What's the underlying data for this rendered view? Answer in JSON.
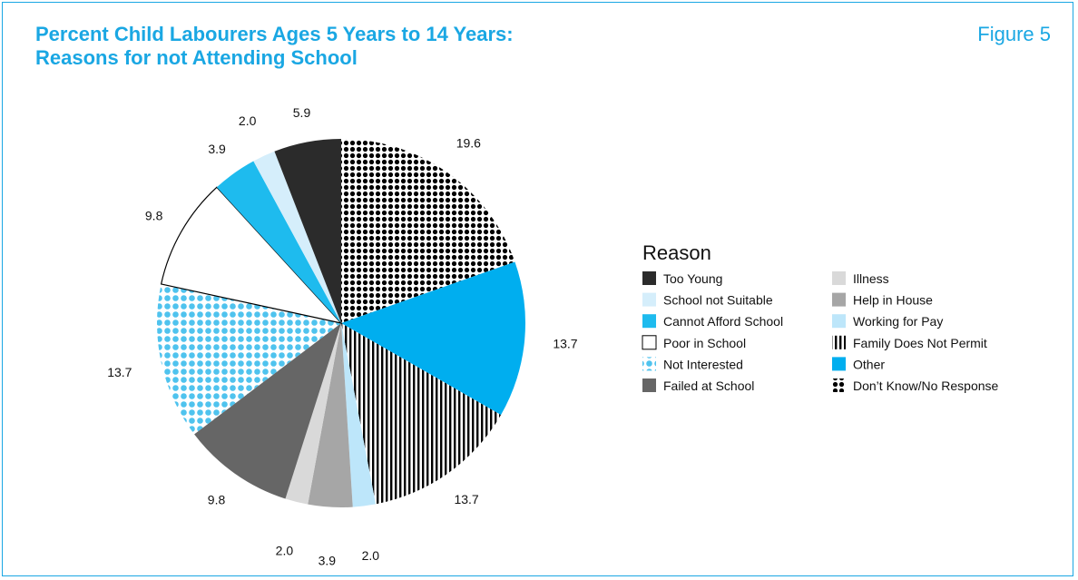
{
  "header": {
    "title_line1": "Percent Child Labourers Ages 5 Years to 14 Years:",
    "title_line2": "Reasons for not Attending School",
    "figure_label": "Figure 5"
  },
  "colors": {
    "accent": "#1aa7e3",
    "too_young": "#2b2b2b",
    "school_not_suitable": "#d5eefb",
    "cannot_afford": "#1ebbee",
    "poor_in_school": "#ffffff",
    "not_interested": "#4fc3ee",
    "failed_at_school": "#666666",
    "illness": "#d9d9d9",
    "help_in_house": "#a6a6a6",
    "working_for_pay": "#bde6fa",
    "family_not_permit": "#000000",
    "other": "#00aeef",
    "dont_know": "#000000"
  },
  "chart_data": {
    "type": "pie",
    "title": "Percent Child Labourers Ages 5 Years to 14 Years: Reasons for not Attending School",
    "legend_title": "Reason",
    "legend_position": "right",
    "slices": [
      {
        "label": "Don’t Know/No Response",
        "value": 19.6,
        "display": "19.6",
        "color": "#000000",
        "pattern": "dots-dark"
      },
      {
        "label": "Other",
        "value": 13.7,
        "display": "13.7",
        "color": "#00aeef",
        "pattern": "solid"
      },
      {
        "label": "Family Does Not Permit",
        "value": 13.7,
        "display": "13.7",
        "color": "#000000",
        "pattern": "vstripes"
      },
      {
        "label": "Working for Pay",
        "value": 2.0,
        "display": "2.0",
        "color": "#bde6fa",
        "pattern": "solid"
      },
      {
        "label": "Help in House",
        "value": 3.9,
        "display": "3.9",
        "color": "#a6a6a6",
        "pattern": "solid"
      },
      {
        "label": "Illness",
        "value": 2.0,
        "display": "2.0",
        "color": "#d9d9d9",
        "pattern": "solid"
      },
      {
        "label": "Failed at School",
        "value": 9.8,
        "display": "9.8",
        "color": "#666666",
        "pattern": "solid"
      },
      {
        "label": "Not Interested",
        "value": 13.7,
        "display": "13.7",
        "color": "#4fc3ee",
        "pattern": "dots-blue"
      },
      {
        "label": "Poor in School",
        "value": 9.8,
        "display": "9.8",
        "color": "#ffffff",
        "pattern": "outline"
      },
      {
        "label": "Cannot Afford School",
        "value": 3.9,
        "display": "3.9",
        "color": "#1ebbee",
        "pattern": "solid"
      },
      {
        "label": "School not Suitable",
        "value": 2.0,
        "display": "2.0",
        "color": "#d5eefb",
        "pattern": "solid"
      },
      {
        "label": "Too Young",
        "value": 5.9,
        "display": "5.9",
        "color": "#2b2b2b",
        "pattern": "solid"
      }
    ],
    "legend": [
      {
        "label": "Too Young",
        "color": "#2b2b2b",
        "pattern": "solid"
      },
      {
        "label": "Illness",
        "color": "#d9d9d9",
        "pattern": "solid"
      },
      {
        "label": "School not Suitable",
        "color": "#d5eefb",
        "pattern": "solid"
      },
      {
        "label": "Help in House",
        "color": "#a6a6a6",
        "pattern": "solid"
      },
      {
        "label": "Cannot Afford School",
        "color": "#1ebbee",
        "pattern": "solid"
      },
      {
        "label": "Working for Pay",
        "color": "#bde6fa",
        "pattern": "solid"
      },
      {
        "label": "Poor in School",
        "color": "#ffffff",
        "pattern": "outline"
      },
      {
        "label": "Family Does Not Permit",
        "color": "#000000",
        "pattern": "vstripes"
      },
      {
        "label": "Not Interested",
        "color": "#4fc3ee",
        "pattern": "dots-blue"
      },
      {
        "label": "Other",
        "color": "#00aeef",
        "pattern": "solid"
      },
      {
        "label": "Failed at School",
        "color": "#666666",
        "pattern": "solid"
      },
      {
        "label": "Don’t Know/No Response",
        "color": "#000000",
        "pattern": "dots-dark"
      }
    ]
  }
}
